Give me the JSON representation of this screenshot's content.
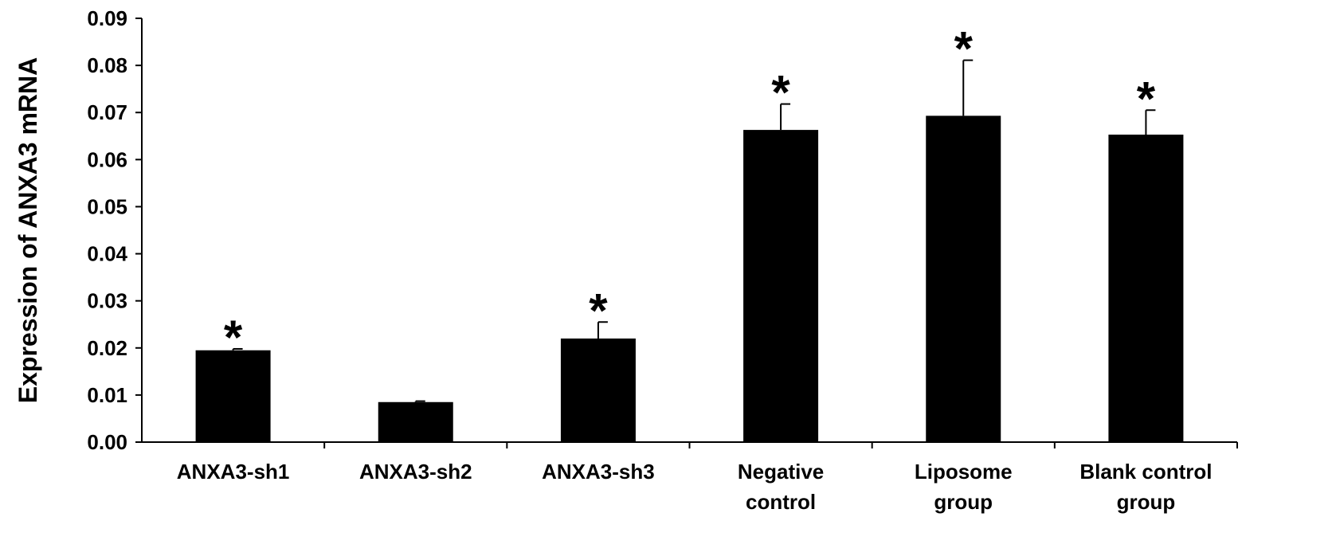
{
  "chart_data": {
    "type": "bar",
    "title": "",
    "xlabel": "",
    "ylabel": "Expression of ANXA3 mRNA",
    "ylim": [
      0,
      0.09
    ],
    "yticks": [
      "0.00",
      "0.01",
      "0.02",
      "0.03",
      "0.04",
      "0.05",
      "0.06",
      "0.07",
      "0.08",
      "0.09"
    ],
    "grid": false,
    "legend": "none",
    "bar_color": "#000000",
    "categories": [
      [
        "ANXA3-sh1"
      ],
      [
        "ANXA3-sh2"
      ],
      [
        "ANXA3-sh3"
      ],
      [
        "Negative",
        "control"
      ],
      [
        "Liposome",
        "group"
      ],
      [
        "Blank control",
        "group"
      ]
    ],
    "values": [
      0.0195,
      0.0085,
      0.022,
      0.0663,
      0.0693,
      0.0653
    ],
    "errors": [
      0.0003,
      0.0002,
      0.0035,
      0.0055,
      0.0118,
      0.0052
    ],
    "significance": [
      "*",
      "",
      "*",
      "*",
      "*",
      "*"
    ]
  }
}
